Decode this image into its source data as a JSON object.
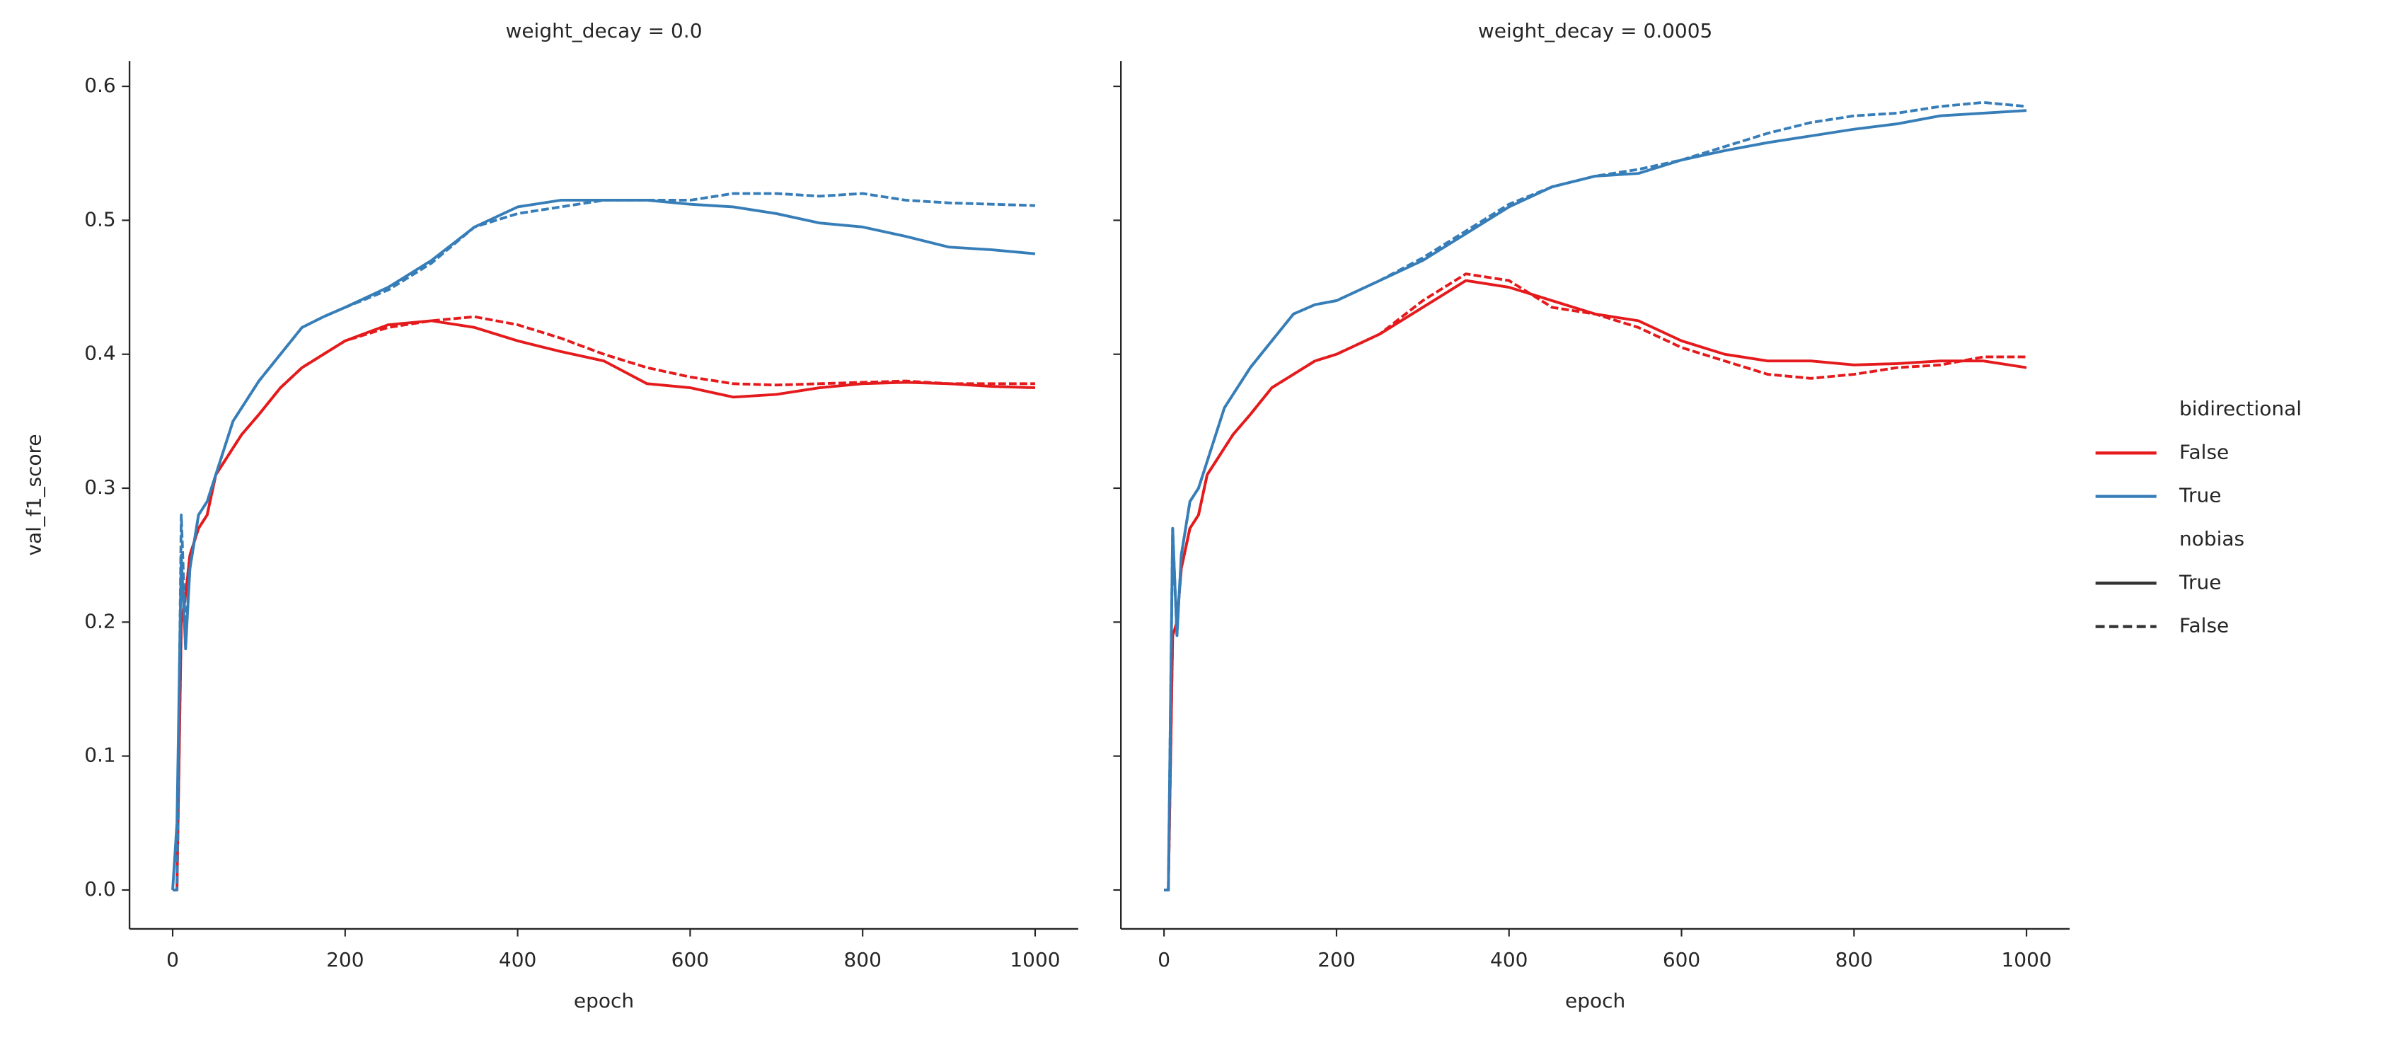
{
  "chart_data": [
    {
      "type": "line",
      "title": "weight_decay = 0.0",
      "xlabel": "epoch",
      "ylabel": "val_f1_score",
      "x": [
        0,
        5,
        10,
        15,
        20,
        30,
        40,
        50,
        60,
        70,
        80,
        100,
        125,
        150,
        175,
        200,
        250,
        300,
        350,
        400,
        450,
        500,
        550,
        600,
        650,
        700,
        750,
        800,
        850,
        900,
        950,
        1000
      ],
      "series": [
        {
          "color": "#e41a1c",
          "dashed": false,
          "values": [
            0,
            0,
            0.2,
            0.22,
            0.25,
            0.27,
            0.28,
            0.31,
            0.32,
            0.33,
            0.34,
            0.355,
            0.375,
            0.39,
            0.4,
            0.41,
            0.422,
            0.425,
            0.42,
            0.41,
            0.402,
            0.395,
            0.378,
            0.375,
            0.368,
            0.37,
            0.375,
            0.378,
            0.379,
            0.378,
            0.376,
            0.375
          ]
        },
        {
          "color": "#e41a1c",
          "dashed": true,
          "values": [
            0,
            0,
            0.2,
            0.22,
            0.25,
            0.27,
            0.28,
            0.31,
            0.32,
            0.33,
            0.34,
            0.355,
            0.375,
            0.39,
            0.4,
            0.41,
            0.42,
            0.425,
            0.428,
            0.422,
            0.412,
            0.4,
            0.39,
            0.383,
            0.378,
            0.377,
            0.378,
            0.379,
            0.38,
            0.378,
            0.378,
            0.378
          ]
        },
        {
          "color": "#377eb8",
          "dashed": false,
          "values": [
            0,
            0.05,
            0.25,
            0.18,
            0.24,
            0.28,
            0.29,
            0.31,
            0.33,
            0.35,
            0.36,
            0.38,
            0.4,
            0.42,
            0.428,
            0.435,
            0.45,
            0.47,
            0.495,
            0.51,
            0.515,
            0.515,
            0.515,
            0.512,
            0.51,
            0.505,
            0.498,
            0.495,
            0.488,
            0.48,
            0.478,
            0.475
          ]
        },
        {
          "color": "#377eb8",
          "dashed": true,
          "values": [
            0,
            0,
            0.28,
            0.19,
            0.24,
            0.28,
            0.29,
            0.31,
            0.33,
            0.35,
            0.36,
            0.38,
            0.4,
            0.42,
            0.428,
            0.435,
            0.448,
            0.468,
            0.495,
            0.505,
            0.51,
            0.515,
            0.515,
            0.515,
            0.52,
            0.52,
            0.518,
            0.52,
            0.515,
            0.513,
            0.512,
            0.511
          ]
        }
      ],
      "xlim": [
        -50,
        1050
      ],
      "ylim": [
        -0.029,
        0.619
      ],
      "xticks": [
        0,
        200,
        400,
        600,
        800,
        1000
      ],
      "yticks": [
        {
          "value": 0,
          "label": "0.0"
        },
        0.1,
        0.2,
        0.3,
        0.4,
        0.5,
        0.6
      ]
    },
    {
      "type": "line",
      "title": "weight_decay = 0.0005",
      "xlabel": "epoch",
      "x": [
        0,
        5,
        10,
        15,
        20,
        30,
        40,
        50,
        60,
        70,
        80,
        100,
        125,
        150,
        175,
        200,
        250,
        300,
        350,
        400,
        450,
        500,
        550,
        600,
        650,
        700,
        750,
        800,
        850,
        900,
        950,
        1000
      ],
      "series": [
        {
          "color": "#e41a1c",
          "dashed": false,
          "values": [
            0,
            0,
            0.19,
            0.2,
            0.24,
            0.27,
            0.28,
            0.31,
            0.32,
            0.33,
            0.34,
            0.355,
            0.375,
            0.385,
            0.395,
            0.4,
            0.415,
            0.435,
            0.455,
            0.45,
            0.44,
            0.43,
            0.425,
            0.41,
            0.4,
            0.395,
            0.395,
            0.392,
            0.393,
            0.395,
            0.395,
            0.39
          ]
        },
        {
          "color": "#e41a1c",
          "dashed": true,
          "values": [
            0,
            0,
            0.19,
            0.2,
            0.24,
            0.27,
            0.28,
            0.31,
            0.32,
            0.33,
            0.34,
            0.355,
            0.375,
            0.385,
            0.395,
            0.4,
            0.415,
            0.44,
            0.46,
            0.455,
            0.435,
            0.43,
            0.42,
            0.405,
            0.395,
            0.385,
            0.382,
            0.385,
            0.39,
            0.392,
            0.398,
            0.398
          ]
        },
        {
          "color": "#377eb8",
          "dashed": false,
          "values": [
            0,
            0,
            0.27,
            0.19,
            0.25,
            0.29,
            0.3,
            0.32,
            0.34,
            0.36,
            0.37,
            0.39,
            0.41,
            0.43,
            0.437,
            0.44,
            0.455,
            0.47,
            0.49,
            0.51,
            0.525,
            0.533,
            0.535,
            0.545,
            0.552,
            0.558,
            0.563,
            0.568,
            0.572,
            0.578,
            0.58,
            0.582
          ]
        },
        {
          "color": "#377eb8",
          "dashed": true,
          "values": [
            0,
            0,
            0.27,
            0.19,
            0.25,
            0.29,
            0.3,
            0.32,
            0.34,
            0.36,
            0.37,
            0.39,
            0.41,
            0.43,
            0.437,
            0.44,
            0.455,
            0.472,
            0.492,
            0.512,
            0.525,
            0.533,
            0.538,
            0.545,
            0.555,
            0.565,
            0.573,
            0.578,
            0.58,
            0.585,
            0.588,
            0.585
          ]
        }
      ],
      "xlim": [
        -50,
        1050
      ],
      "ylim": [
        -0.029,
        0.619
      ],
      "xticks": [
        0,
        200,
        400,
        600,
        800,
        1000
      ],
      "yticks": [
        0,
        0.1,
        0.2,
        0.3,
        0.4,
        0.5,
        0.6
      ]
    }
  ],
  "legend": {
    "position": "right",
    "sections": [
      {
        "title": "bidirectional",
        "items": [
          {
            "label": "False",
            "color": "#e41a1c"
          },
          {
            "label": "True",
            "color": "#377eb8"
          }
        ]
      },
      {
        "title": "nobias",
        "items": [
          {
            "label": "True",
            "dashed": false
          },
          {
            "label": "False",
            "dashed": true
          }
        ]
      }
    ]
  }
}
